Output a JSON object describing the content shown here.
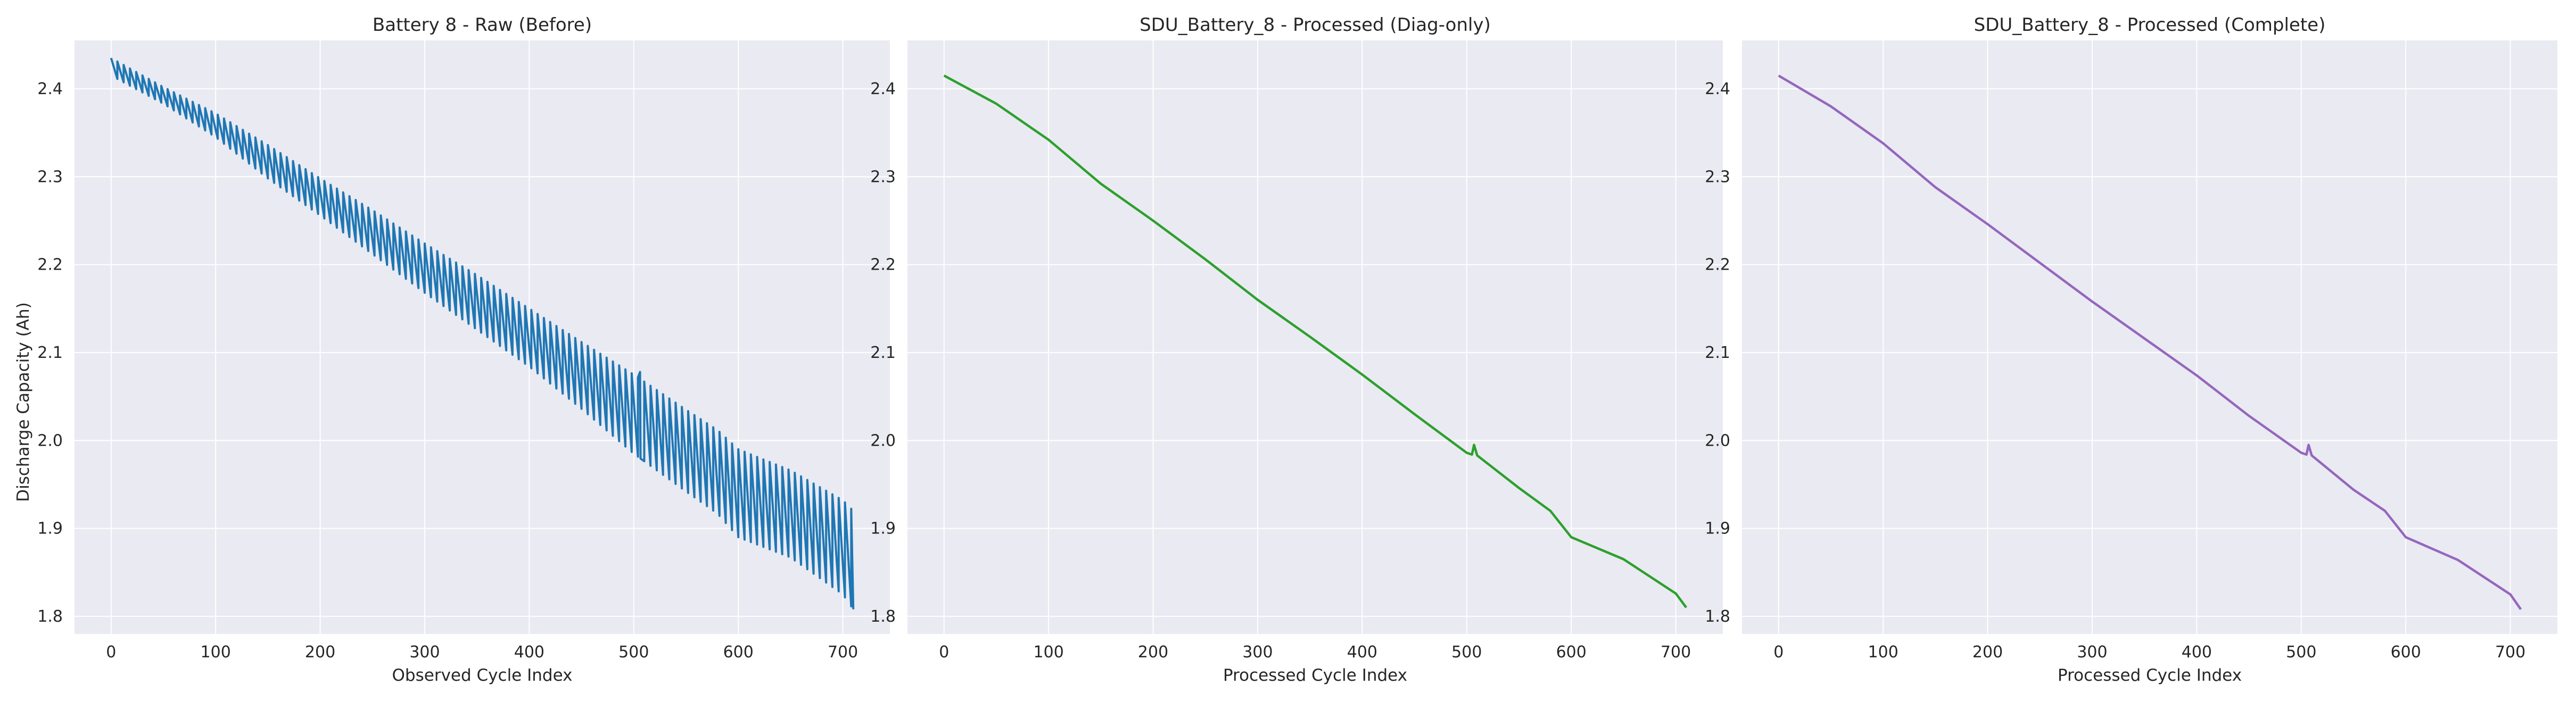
{
  "figure": {
    "ylabel": "Discharge Capacity (Ah)"
  },
  "chart_data": [
    {
      "type": "line",
      "title": "Battery 8 - Raw (Before)",
      "xlabel": "Observed Cycle Index",
      "ylabel": "Discharge Capacity (Ah)",
      "xlim": [
        -35,
        745
      ],
      "ylim": [
        1.78,
        2.455
      ],
      "x_ticks": [
        0,
        100,
        200,
        300,
        400,
        500,
        600,
        700
      ],
      "y_ticks": [
        1.8,
        1.9,
        2.0,
        2.1,
        2.2,
        2.3,
        2.4
      ],
      "grid": true,
      "series": [
        {
          "color": "#1f77b4",
          "style": "sawtooth",
          "x_range": [
            0,
            710
          ],
          "cycle_period": 6,
          "lower_envelope": {
            "x": [
              0,
              50,
              100,
              150,
              200,
              250,
              300,
              350,
              400,
              450,
              500,
              550,
              580,
              600,
              650,
              700,
              710
            ],
            "y": [
              2.415,
              2.383,
              2.345,
              2.298,
              2.256,
              2.212,
              2.168,
              2.126,
              2.084,
              2.036,
              1.985,
              1.942,
              1.917,
              1.89,
              1.867,
              1.825,
              1.808
            ]
          },
          "upper_envelope": {
            "x": [
              0,
              50,
              100,
              150,
              200,
              250,
              300,
              350,
              400,
              450,
              500,
              550,
              580,
              600,
              650,
              700,
              710
            ],
            "y": [
              2.435,
              2.402,
              2.372,
              2.336,
              2.298,
              2.262,
              2.224,
              2.188,
              2.15,
              2.112,
              2.075,
              2.035,
              2.012,
              1.99,
              1.966,
              1.932,
              1.92
            ]
          },
          "spike": {
            "x": 506,
            "y": 2.078
          }
        }
      ]
    },
    {
      "type": "line",
      "title": "SDU_Battery_8 - Processed (Diag-only)",
      "xlabel": "Processed Cycle Index",
      "ylabel": "",
      "xlim": [
        -35,
        745
      ],
      "ylim": [
        1.78,
        2.455
      ],
      "x_ticks": [
        0,
        100,
        200,
        300,
        400,
        500,
        600,
        700
      ],
      "y_ticks": [
        1.8,
        1.9,
        2.0,
        2.1,
        2.2,
        2.3,
        2.4
      ],
      "grid": true,
      "series": [
        {
          "color": "#2ca02c",
          "x": [
            0,
            50,
            100,
            150,
            200,
            250,
            300,
            350,
            400,
            450,
            500,
            505,
            507,
            510,
            550,
            580,
            600,
            650,
            700,
            710
          ],
          "y": [
            2.415,
            2.383,
            2.342,
            2.292,
            2.25,
            2.206,
            2.16,
            2.118,
            2.075,
            2.03,
            1.986,
            1.984,
            1.995,
            1.983,
            1.946,
            1.92,
            1.89,
            1.865,
            1.826,
            1.81
          ]
        }
      ]
    },
    {
      "type": "line",
      "title": "SDU_Battery_8 - Processed (Complete)",
      "xlabel": "Processed Cycle Index",
      "ylabel": "",
      "xlim": [
        -35,
        745
      ],
      "ylim": [
        1.78,
        2.455
      ],
      "x_ticks": [
        0,
        100,
        200,
        300,
        400,
        500,
        600,
        700
      ],
      "y_ticks": [
        1.8,
        1.9,
        2.0,
        2.1,
        2.2,
        2.3,
        2.4
      ],
      "grid": true,
      "series": [
        {
          "color": "#9467bd",
          "x": [
            0,
            50,
            100,
            150,
            200,
            250,
            300,
            350,
            400,
            450,
            500,
            505,
            507,
            510,
            550,
            580,
            600,
            650,
            700,
            710
          ],
          "y": [
            2.415,
            2.38,
            2.338,
            2.288,
            2.246,
            2.202,
            2.158,
            2.116,
            2.074,
            2.028,
            1.986,
            1.984,
            1.995,
            1.983,
            1.944,
            1.92,
            1.89,
            1.864,
            1.825,
            1.808
          ]
        }
      ]
    }
  ]
}
